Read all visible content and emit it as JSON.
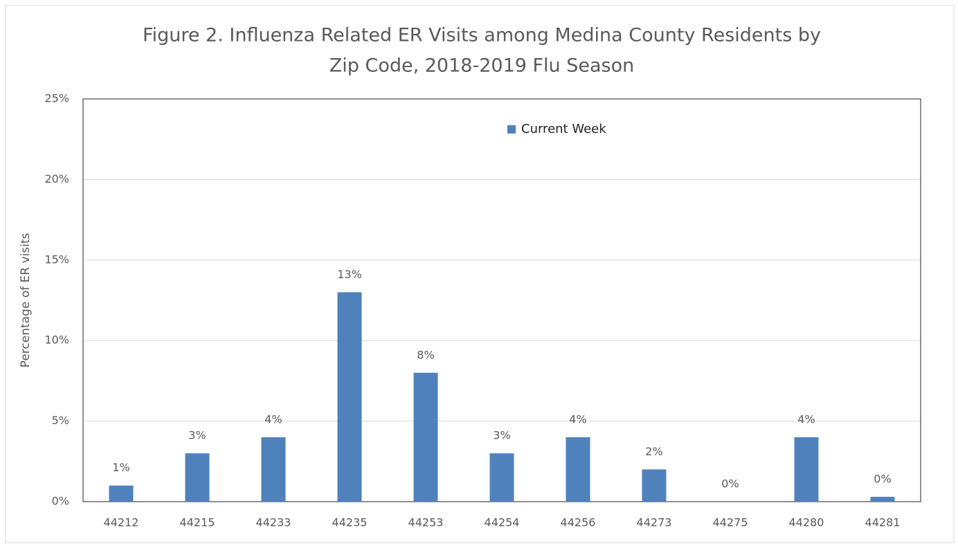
{
  "chart_data": {
    "type": "bar",
    "title": [
      "Figure 2. Influenza Related ER Visits among Medina County Residents by",
      "Zip Code, 2018-2019 Flu Season"
    ],
    "y_label": "Percentage of ER visits",
    "categories": [
      "44212",
      "44215",
      "44233",
      "44235",
      "44253",
      "44254",
      "44256",
      "44273",
      "44275",
      "44280",
      "44281"
    ],
    "series": [
      {
        "name": "Current Week",
        "color": "#4f81bd",
        "values": [
          1,
          3,
          4,
          13,
          8,
          3,
          4,
          2,
          0,
          4,
          0.3
        ],
        "value_labels": [
          "1%",
          "3%",
          "4%",
          "13%",
          "8%",
          "3%",
          "4%",
          "2%",
          "0%",
          "4%",
          "0%"
        ]
      }
    ],
    "ylim": [
      0,
      25
    ],
    "yticks": [
      {
        "value": 0,
        "label": "0%"
      },
      {
        "value": 5,
        "label": "5%"
      },
      {
        "value": 10,
        "label": "10%"
      },
      {
        "value": 15,
        "label": "15%"
      },
      {
        "value": 20,
        "label": "20%"
      },
      {
        "value": 25,
        "label": "25%"
      }
    ],
    "grid": true,
    "legend": "top"
  }
}
